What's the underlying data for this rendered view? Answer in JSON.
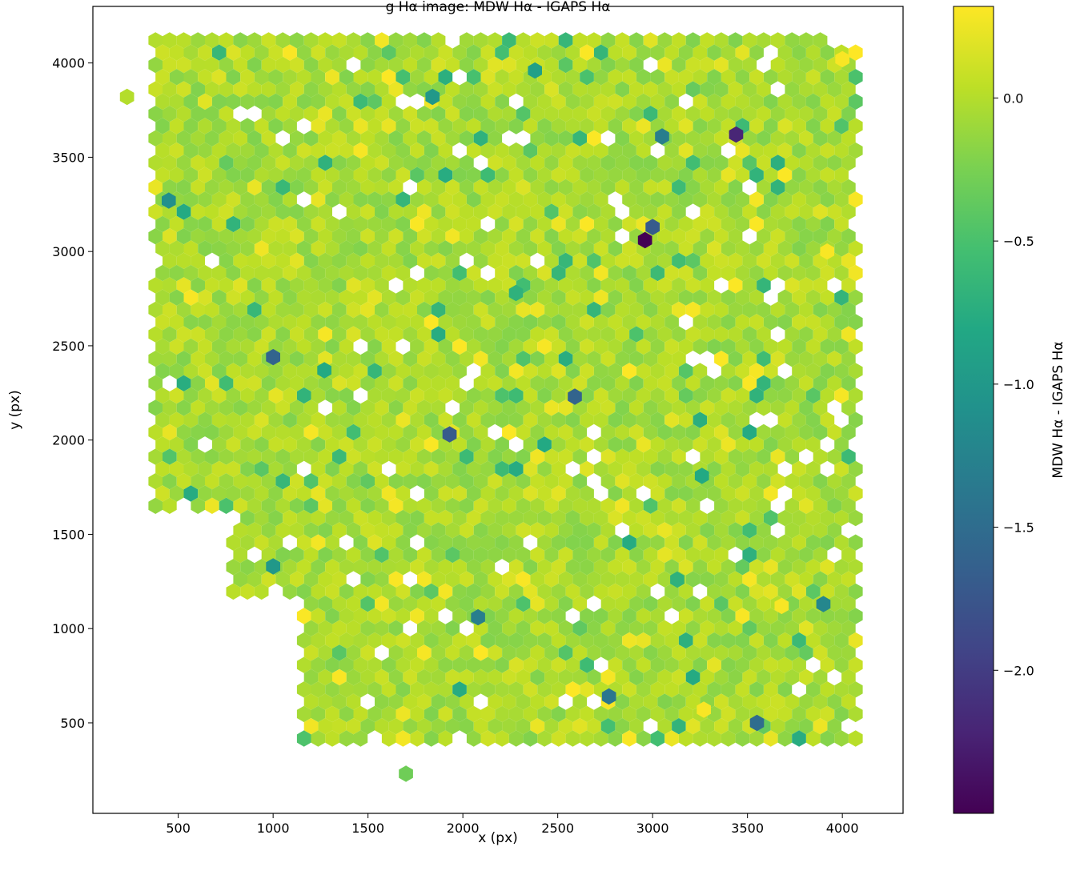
{
  "chart_data": {
    "type": "hexbin",
    "title": "g Hα image: MDW Hα - IGAPS Hα",
    "xlabel": "x (px)",
    "ylabel": "y (px)",
    "xlim": [
      50,
      4320
    ],
    "ylim": [
      20,
      4300
    ],
    "xticks": [
      500,
      1000,
      1500,
      2000,
      2500,
      3000,
      3500,
      4000
    ],
    "yticks": [
      500,
      1000,
      1500,
      2000,
      2500,
      3000,
      3500,
      4000
    ],
    "grid": false,
    "colorbar": {
      "label": "MDW Hα - IGAPS Hα",
      "colormap": "viridis",
      "range": [
        -2.5,
        0.32
      ],
      "ticks": [
        0.0,
        -0.5,
        -1.0,
        -1.5,
        -2.0
      ],
      "tick_labels": [
        "0.0",
        "−0.5",
        "−1.0",
        "−1.5",
        "−2.0"
      ]
    },
    "hex_field": {
      "x_range": [
        230,
        4100
      ],
      "y_range": [
        230,
        4120
      ],
      "typical_value": 0.0,
      "empty_region": "lower-left corner below y≈1600 for x<780 and below y≈1150 for x<1150"
    },
    "notable_points": [
      {
        "x": 230,
        "y": 3820,
        "value": 0.0
      },
      {
        "x": 1700,
        "y": 230,
        "value": -0.3
      },
      {
        "x": 2960,
        "y": 3060,
        "value": -2.5
      },
      {
        "x": 3440,
        "y": 3620,
        "value": -2.2
      },
      {
        "x": 3000,
        "y": 3130,
        "value": -1.7
      },
      {
        "x": 1000,
        "y": 2440,
        "value": -1.6
      },
      {
        "x": 2590,
        "y": 2230,
        "value": -1.6
      },
      {
        "x": 1930,
        "y": 2030,
        "value": -1.7
      },
      {
        "x": 3550,
        "y": 500,
        "value": -1.5
      },
      {
        "x": 2770,
        "y": 640,
        "value": -1.4
      },
      {
        "x": 2080,
        "y": 1060,
        "value": -1.3
      },
      {
        "x": 3900,
        "y": 1130,
        "value": -1.2
      },
      {
        "x": 1000,
        "y": 1330,
        "value": -1.0
      },
      {
        "x": 3050,
        "y": 3610,
        "value": -1.3
      },
      {
        "x": 450,
        "y": 3270,
        "value": -1.1
      },
      {
        "x": 1840,
        "y": 3820,
        "value": -1.0
      },
      {
        "x": 2380,
        "y": 3960,
        "value": -0.9
      },
      {
        "x": 3260,
        "y": 1810,
        "value": -0.8
      },
      {
        "x": 1270,
        "y": 2370,
        "value": -0.8
      },
      {
        "x": 2280,
        "y": 2780,
        "value": -0.7
      },
      {
        "x": 3130,
        "y": 1260,
        "value": -0.7
      },
      {
        "x": 3920,
        "y": 3000,
        "value": 0.3
      },
      {
        "x": 3270,
        "y": 570,
        "value": 0.3
      },
      {
        "x": 3680,
        "y": 1120,
        "value": 0.3
      },
      {
        "x": 4000,
        "y": 4020,
        "value": 0.3
      }
    ]
  }
}
